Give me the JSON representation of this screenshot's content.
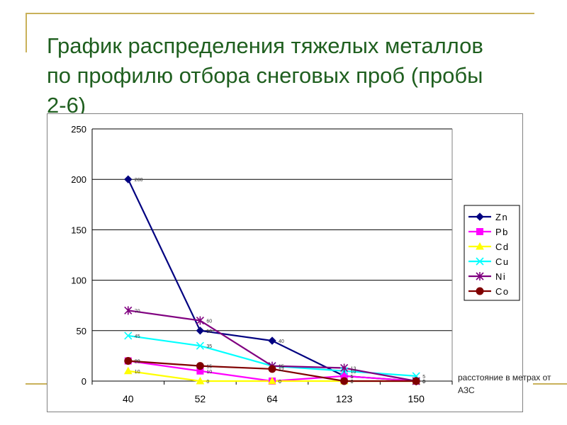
{
  "title": "График распределения  тяжелых металлов по профилю отбора снеговых проб (пробы 2-6)",
  "distance_label": "расстояние в метрах от АЗС",
  "chart_data": {
    "type": "line",
    "categories": [
      "40",
      "52",
      "64",
      "123",
      "150"
    ],
    "ylim": [
      0,
      250
    ],
    "yticks": [
      0,
      50,
      100,
      150,
      200,
      250
    ],
    "grid": true,
    "legend_position": "right",
    "series": [
      {
        "name": "Zn",
        "values": [
          200,
          50,
          40,
          5,
          0
        ],
        "labels": [
          "200",
          "50",
          "40",
          "5",
          "0"
        ],
        "color": "#000080",
        "marker": "diamond"
      },
      {
        "name": "Pb",
        "values": [
          20,
          10,
          0,
          5,
          0
        ],
        "labels": [
          "20",
          "10",
          "0",
          "5",
          "0"
        ],
        "color": "#ff00ff",
        "marker": "square"
      },
      {
        "name": "Cd",
        "values": [
          10,
          0,
          0,
          0,
          0
        ],
        "labels": [
          "10",
          "0",
          "0",
          "0",
          "0"
        ],
        "color": "#ffff00",
        "marker": "triangle"
      },
      {
        "name": "Cu",
        "values": [
          45,
          35,
          15,
          10,
          5
        ],
        "labels": [
          "45",
          "35",
          "15",
          "10",
          "5"
        ],
        "color": "#00ffff",
        "marker": "x"
      },
      {
        "name": "Ni",
        "values": [
          70,
          60,
          15,
          13,
          0
        ],
        "labels": [
          "70",
          "60",
          "15",
          "13",
          "0"
        ],
        "color": "#800080",
        "marker": "star"
      },
      {
        "name": "Co",
        "values": [
          20,
          15,
          12,
          0,
          0
        ],
        "labels": [
          "20",
          "15",
          "12",
          "0",
          "0"
        ],
        "color": "#800000",
        "marker": "circle"
      }
    ]
  }
}
